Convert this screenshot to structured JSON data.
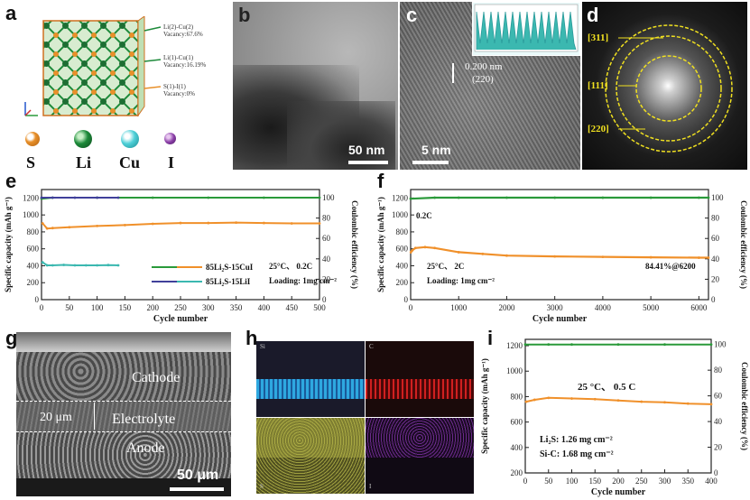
{
  "panel_labels": {
    "a": "a",
    "b": "b",
    "c": "c",
    "d": "d",
    "e": "e",
    "f": "f",
    "g": "g",
    "h": "h",
    "i": "i"
  },
  "panel_a": {
    "annotations": [
      {
        "site": "Li(2)-Cu(2)",
        "vacancy": "Vacancy:67.6%"
      },
      {
        "site": "Li(1)-Cu(1)",
        "vacancy": "Vacancy:16.19%"
      },
      {
        "site": "S(1)-I(1)",
        "vacancy": "Vacancy:0%"
      }
    ],
    "legend": [
      {
        "symbol": "S",
        "color": "#e8902a"
      },
      {
        "symbol": "Li",
        "color": "#1d8a3a"
      },
      {
        "symbol": "Cu",
        "color": "#4fd0d8"
      },
      {
        "symbol": "I",
        "color": "#8b3fa8"
      }
    ]
  },
  "panel_b": {
    "scale": "50 nm"
  },
  "panel_c": {
    "scale": "5 nm",
    "d_spacing": "0.200 nm",
    "plane": "(220)"
  },
  "panel_d": {
    "rings": [
      "[311]",
      "[111]",
      "[220]"
    ]
  },
  "panel_g": {
    "layers": [
      "Cathode",
      "Electrolyte",
      "Anode"
    ],
    "thickness": "20 μm",
    "scale": "50 μm"
  },
  "panel_h": {
    "maps": [
      "Si",
      "C",
      "S",
      "I"
    ]
  },
  "charts": {
    "e": {
      "xlabel": "Cycle number",
      "ylabel": "Specific capacity (mAh g⁻¹)",
      "y2label": "Coulombic efficiency (%)",
      "xticks": [
        "0",
        "50",
        "100",
        "150",
        "200",
        "250",
        "300",
        "350",
        "400",
        "450",
        "500"
      ],
      "yticks": [
        "0",
        "200",
        "400",
        "600",
        "800",
        "1000",
        "1200"
      ],
      "y2ticks": [
        "0",
        "20",
        "40",
        "60",
        "80",
        "100"
      ],
      "legend": [
        "85Li₂S-15CuI",
        "85Li₂S-15LiI"
      ],
      "conditions": [
        "25°C、 0.2C",
        "Loading: 1mg cm⁻²"
      ]
    },
    "f": {
      "xlabel": "Cycle number",
      "ylabel": "Specific capacity (mAh g⁻¹)",
      "y2label": "Coulombic efficiency (%)",
      "xticks": [
        "0",
        "1000",
        "2000",
        "3000",
        "4000",
        "5000",
        "6000"
      ],
      "yticks": [
        "0",
        "200",
        "400",
        "600",
        "800",
        "1000",
        "1200"
      ],
      "y2ticks": [
        "0",
        "20",
        "40",
        "60",
        "80",
        "100"
      ],
      "annot_rate": "0.2C",
      "conditions": [
        "25°C、 2C",
        "Loading: 1mg cm⁻²"
      ],
      "retention": "84.41%@6200"
    },
    "i": {
      "xlabel": "Cycle number",
      "ylabel": "Specific capacity (mAh g⁻¹)",
      "y2label": "Coulombic efficiency (%)",
      "xticks": [
        "0",
        "50",
        "100",
        "150",
        "200",
        "250",
        "300",
        "350",
        "400"
      ],
      "yticks": [
        "200",
        "400",
        "600",
        "800",
        "1000",
        "1200"
      ],
      "y2ticks": [
        "0",
        "20",
        "40",
        "60",
        "80",
        "100"
      ],
      "conditions": "25 °C、 0.5 C",
      "loadings": [
        "Li₂S: 1.26 mg cm⁻²",
        "Si-C: 1.68 mg cm⁻²"
      ]
    }
  },
  "chart_data": [
    {
      "type": "line",
      "id": "e",
      "x_range": [
        0,
        500
      ],
      "ylim": [
        0,
        1300
      ],
      "y2lim": [
        0,
        108
      ],
      "series": [
        {
          "name": "85Li₂S-15CuI",
          "axis": "left",
          "color": "#f0902a",
          "x": [
            2,
            10,
            20,
            50,
            100,
            150,
            200,
            250,
            300,
            350,
            400,
            450,
            500
          ],
          "y": [
            900,
            840,
            845,
            855,
            870,
            880,
            895,
            905,
            905,
            910,
            905,
            900,
            900
          ]
        },
        {
          "name": "85Li₂S-15LiI",
          "axis": "left",
          "color": "#3bb8b0",
          "x": [
            2,
            10,
            20,
            40,
            60,
            80,
            100,
            120,
            138
          ],
          "y": [
            440,
            405,
            405,
            410,
            405,
            405,
            405,
            408,
            405
          ]
        },
        {
          "name": "85Li₂S-15CuI",
          "axis": "right",
          "color": "#2a9a3a",
          "x": [
            0,
            20,
            100,
            200,
            300,
            400,
            500
          ],
          "y": [
            99,
            100,
            100,
            100,
            100,
            100,
            100
          ]
        },
        {
          "name": "85Li₂S-15LiI",
          "axis": "right",
          "color": "#40409a",
          "x": [
            0,
            20,
            60,
            100,
            138
          ],
          "y": [
            100,
            100,
            100,
            100,
            100
          ]
        }
      ]
    },
    {
      "type": "line",
      "id": "f",
      "x_range": [
        0,
        6200
      ],
      "ylim": [
        0,
        1300
      ],
      "y2lim": [
        0,
        108
      ],
      "series": [
        {
          "name": "capacity",
          "axis": "left",
          "color": "#f0902a",
          "x": [
            5,
            30,
            100,
            300,
            500,
            1000,
            1500,
            2000,
            3000,
            4000,
            5000,
            6000,
            6200
          ],
          "y": [
            560,
            580,
            610,
            620,
            610,
            560,
            540,
            520,
            510,
            505,
            500,
            495,
            495
          ]
        },
        {
          "name": "efficiency",
          "axis": "right",
          "color": "#2a9a3a",
          "x": [
            0,
            500,
            1000,
            2000,
            3000,
            4000,
            5000,
            6000,
            6200
          ],
          "y": [
            99,
            100,
            100,
            100,
            100,
            100,
            100,
            100,
            100
          ]
        }
      ]
    },
    {
      "type": "line",
      "id": "i",
      "x_range": [
        0,
        400
      ],
      "ylim": [
        200,
        1250
      ],
      "y2lim": [
        0,
        104
      ],
      "series": [
        {
          "name": "capacity",
          "axis": "left",
          "color": "#f0902a",
          "x": [
            2,
            20,
            50,
            100,
            150,
            200,
            250,
            300,
            350,
            400
          ],
          "y": [
            760,
            775,
            790,
            785,
            780,
            770,
            760,
            755,
            745,
            740
          ]
        },
        {
          "name": "efficiency",
          "axis": "right",
          "color": "#2a9a3a",
          "x": [
            0,
            50,
            100,
            200,
            300,
            400
          ],
          "y": [
            100,
            100,
            100,
            100,
            100,
            100
          ]
        }
      ]
    }
  ]
}
